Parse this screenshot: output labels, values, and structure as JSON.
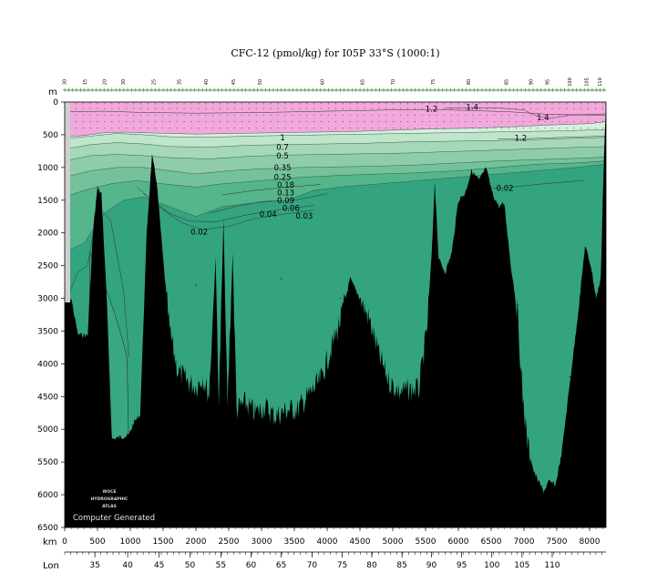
{
  "chart_data": {
    "type": "area",
    "title": "CFC-12 (pmol/kg) for I05P 33°S (1000:1)",
    "xlabel": "km",
    "ylabel": "m",
    "xlim": [
      0,
      8250
    ],
    "ylim": [
      6500,
      0
    ],
    "x_ticks": [
      0,
      500,
      1000,
      1500,
      2000,
      2500,
      3000,
      3500,
      4000,
      4500,
      5000,
      5500,
      6000,
      6500,
      7000,
      7500,
      8000
    ],
    "y_ticks": [
      0,
      500,
      1000,
      1500,
      2000,
      2500,
      3000,
      3500,
      4000,
      4500,
      5000,
      5500,
      6000,
      6500
    ],
    "lon_label": "Lon",
    "lon_ticks": [
      {
        "km": 460,
        "lon": "35"
      },
      {
        "km": 960,
        "lon": "40"
      },
      {
        "km": 1440,
        "lon": "45"
      },
      {
        "km": 1910,
        "lon": "50"
      },
      {
        "km": 2380,
        "lon": "55"
      },
      {
        "km": 2840,
        "lon": "60"
      },
      {
        "km": 3300,
        "lon": "65"
      },
      {
        "km": 3770,
        "lon": "70"
      },
      {
        "km": 4230,
        "lon": "75"
      },
      {
        "km": 4680,
        "lon": "80"
      },
      {
        "km": 5140,
        "lon": "85"
      },
      {
        "km": 5590,
        "lon": "90"
      },
      {
        "km": 6050,
        "lon": "95"
      },
      {
        "km": 6510,
        "lon": "100"
      },
      {
        "km": 6970,
        "lon": "105"
      },
      {
        "km": 7430,
        "lon": "110"
      }
    ],
    "station_labels": [
      {
        "km": 20,
        "label": "30"
      },
      {
        "km": 330,
        "label": "15"
      },
      {
        "km": 630,
        "label": "20"
      },
      {
        "km": 920,
        "label": "30"
      },
      {
        "km": 1380,
        "label": "25"
      },
      {
        "km": 1770,
        "label": "35"
      },
      {
        "km": 2180,
        "label": "40"
      },
      {
        "km": 2600,
        "label": "45"
      },
      {
        "km": 3000,
        "label": "50"
      },
      {
        "km": 3950,
        "label": "60"
      },
      {
        "km": 4560,
        "label": "65"
      },
      {
        "km": 5030,
        "label": "70"
      },
      {
        "km": 5640,
        "label": "75"
      },
      {
        "km": 6180,
        "label": "80"
      },
      {
        "km": 6760,
        "label": "85"
      },
      {
        "km": 7130,
        "label": "90"
      },
      {
        "km": 7380,
        "label": "95"
      },
      {
        "km": 7720,
        "label": "100"
      },
      {
        "km": 7980,
        "label": "105"
      },
      {
        "km": 8180,
        "label": "110"
      }
    ],
    "contour_levels": [
      0.02,
      0.03,
      0.04,
      0.06,
      0.09,
      0.13,
      0.18,
      0.25,
      0.35,
      0.5,
      0.7,
      1,
      1.2,
      1.4
    ],
    "contour_labels": [
      {
        "label": "1.2",
        "km": 5590,
        "depth": 105
      },
      {
        "label": "1.4",
        "km": 6210,
        "depth": 75
      },
      {
        "label": "1.4",
        "km": 7290,
        "depth": 235
      },
      {
        "label": "1.2",
        "km": 6950,
        "depth": 550
      },
      {
        "label": "1",
        "km": 3320,
        "depth": 540
      },
      {
        "label": "0.7",
        "km": 3320,
        "depth": 690
      },
      {
        "label": "0.5",
        "km": 3320,
        "depth": 820
      },
      {
        "label": "0.35",
        "km": 3320,
        "depth": 1005
      },
      {
        "label": "0.25",
        "km": 3320,
        "depth": 1150
      },
      {
        "label": "0.18",
        "km": 3370,
        "depth": 1270
      },
      {
        "label": "0.13",
        "km": 3370,
        "depth": 1385
      },
      {
        "label": "0.09",
        "km": 3370,
        "depth": 1500
      },
      {
        "label": "0.06",
        "km": 3450,
        "depth": 1620
      },
      {
        "label": "0.03",
        "km": 3650,
        "depth": 1740
      },
      {
        "label": "0.04",
        "km": 3100,
        "depth": 1710
      },
      {
        "label": "0.02",
        "km": 2050,
        "depth": 1985
      },
      {
        "label": "0.02",
        "km": 6710,
        "depth": 1315
      }
    ],
    "bathymetry_depth_m": [
      [
        0,
        2950
      ],
      [
        100,
        3000
      ],
      [
        200,
        3550
      ],
      [
        350,
        3570
      ],
      [
        430,
        2000
      ],
      [
        500,
        1300
      ],
      [
        560,
        1400
      ],
      [
        640,
        3000
      ],
      [
        720,
        5150
      ],
      [
        850,
        5120
      ],
      [
        980,
        5090
      ],
      [
        1050,
        4900
      ],
      [
        1150,
        4780
      ],
      [
        1250,
        2000
      ],
      [
        1330,
        820
      ],
      [
        1400,
        1200
      ],
      [
        1500,
        2400
      ],
      [
        1600,
        3500
      ],
      [
        1720,
        4100
      ],
      [
        1850,
        4250
      ],
      [
        2000,
        4350
      ],
      [
        2100,
        4200
      ],
      [
        2200,
        4480
      ],
      [
        2300,
        2400
      ],
      [
        2350,
        4600
      ],
      [
        2420,
        1800
      ],
      [
        2480,
        4700
      ],
      [
        2560,
        2300
      ],
      [
        2620,
        4700
      ],
      [
        2750,
        4600
      ],
      [
        2900,
        4750
      ],
      [
        3050,
        4650
      ],
      [
        3200,
        4800
      ],
      [
        3400,
        4700
      ],
      [
        3550,
        4700
      ],
      [
        3700,
        4500
      ],
      [
        3900,
        4250
      ],
      [
        4050,
        3800
      ],
      [
        4200,
        3350
      ],
      [
        4350,
        2700
      ],
      [
        4500,
        3000
      ],
      [
        4650,
        3350
      ],
      [
        4800,
        3900
      ],
      [
        4950,
        4280
      ],
      [
        5100,
        4430
      ],
      [
        5250,
        4400
      ],
      [
        5400,
        4380
      ],
      [
        5520,
        3500
      ],
      [
        5600,
        2200
      ],
      [
        5640,
        1200
      ],
      [
        5700,
        2400
      ],
      [
        5800,
        2600
      ],
      [
        5900,
        2300
      ],
      [
        6000,
        1500
      ],
      [
        6100,
        1400
      ],
      [
        6200,
        1050
      ],
      [
        6320,
        1200
      ],
      [
        6420,
        1000
      ],
      [
        6520,
        1400
      ],
      [
        6620,
        1600
      ],
      [
        6700,
        1550
      ],
      [
        6800,
        2500
      ],
      [
        6900,
        3200
      ],
      [
        6980,
        4500
      ],
      [
        7050,
        5200
      ],
      [
        7150,
        5650
      ],
      [
        7300,
        5950
      ],
      [
        7380,
        5800
      ],
      [
        7480,
        5850
      ],
      [
        7570,
        5400
      ],
      [
        7640,
        4800
      ],
      [
        7710,
        4200
      ],
      [
        7770,
        3700
      ],
      [
        7850,
        3000
      ],
      [
        7930,
        2200
      ],
      [
        8020,
        2500
      ],
      [
        8100,
        3000
      ],
      [
        8170,
        2700
      ],
      [
        8200,
        1500
      ],
      [
        8230,
        500
      ],
      [
        8250,
        100
      ]
    ]
  },
  "logo": {
    "line1": "WOCE",
    "line2": "HYDROGRAPHIC",
    "line3": "ATLAS"
  },
  "footer_text": "Computer Generated",
  "colors": {
    "surface": "#f2a8dc",
    "c1": "#d7efdf",
    "c07": "#bfe5cb",
    "c05": "#a5d8b7",
    "c035": "#8fcdaa",
    "c025": "#73c29b",
    "c013": "#55b58b",
    "deep": "#33a47f",
    "ridge_lowcfc": "#3aa882",
    "bottom": "#000000",
    "missing": "#cfcfcf",
    "station_marker": "#2a8f2a"
  }
}
